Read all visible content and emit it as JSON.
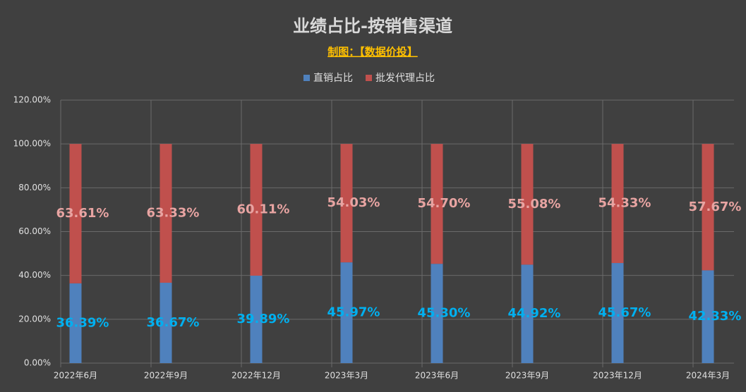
{
  "chart_data": {
    "type": "stacked-bar",
    "title": "业绩占比-按销售渠道",
    "subtitle": "制图：【数据价投】",
    "categories": [
      "2022年6月",
      "2022年9月",
      "2022年12月",
      "2023年3月",
      "2023年6月",
      "2023年9月",
      "2023年12月",
      "2024年3月"
    ],
    "series": [
      {
        "name": "直销占比",
        "color": "#4f81bd",
        "label_color": "#00b0f0",
        "values": [
          36.39,
          36.67,
          39.89,
          45.97,
          45.3,
          44.92,
          45.67,
          42.33
        ],
        "value_labels": [
          "36.39%",
          "36.67%",
          "39.89%",
          "45.97%",
          "45.30%",
          "44.92%",
          "45.67%",
          "42.33%"
        ]
      },
      {
        "name": "批发代理占比",
        "color": "#c0504d",
        "label_color": "#e8a4a2",
        "values": [
          63.61,
          63.33,
          60.11,
          54.03,
          54.7,
          55.08,
          54.33,
          57.67
        ],
        "value_labels": [
          "63.61%",
          "63.33%",
          "60.11%",
          "54.03%",
          "54.70%",
          "55.08%",
          "54.33%",
          "57.67%"
        ]
      }
    ],
    "ylim": [
      0,
      120
    ],
    "yticks": [
      {
        "value": 0,
        "label": "0.00%"
      },
      {
        "value": 20,
        "label": "20.00%"
      },
      {
        "value": 40,
        "label": "40.00%"
      },
      {
        "value": 60,
        "label": "60.00%"
      },
      {
        "value": 80,
        "label": "80.00%"
      },
      {
        "value": 100,
        "label": "100.00%"
      },
      {
        "value": 120,
        "label": "120.00%"
      }
    ],
    "grid": true,
    "legend": "top"
  }
}
